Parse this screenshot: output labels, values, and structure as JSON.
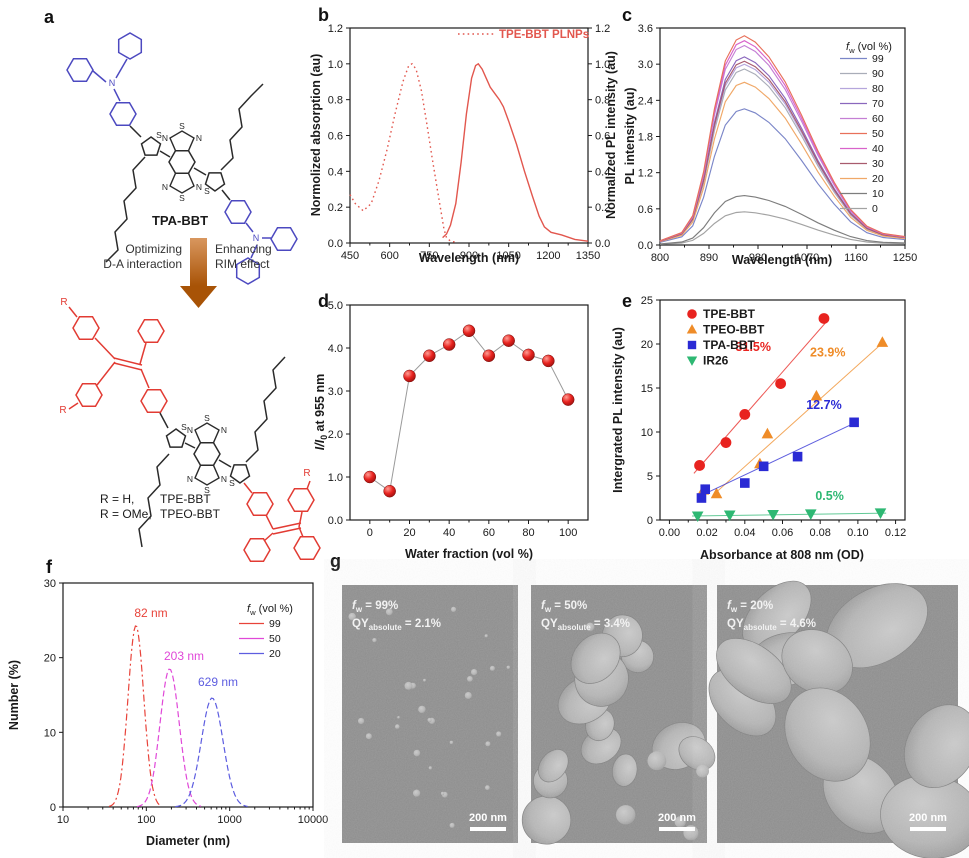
{
  "panel_a": {
    "label": "a",
    "molecule_top_name": "TPA-BBT",
    "arrow_left_lines": [
      "Optimizing",
      "D-A interaction"
    ],
    "arrow_right_lines": [
      "Enhancing",
      "RIM effect"
    ],
    "r_definitions": [
      {
        "r_label": "R = H,",
        "name": "TPE-BBT"
      },
      {
        "r_label": "R = OMe,",
        "name": "TPEO-BBT"
      }
    ],
    "atom_s": "S",
    "atom_n": "N",
    "r_symbol": "R",
    "colors": {
      "tpa_donor": "#4c49c0",
      "tpe_donor": "#e23b33",
      "core": "#2b2b2b"
    }
  },
  "chart_data": [
    {
      "id": "b",
      "type": "line",
      "panel_label": "b",
      "xlabel": "Wavelength (nm)",
      "ylabel_left": "Normolized absorption (au)",
      "ylabel_right": "Normalized PL intensity (au)",
      "xlim": [
        450,
        1350
      ],
      "ylim": [
        0,
        1.2
      ],
      "xticks": [
        450,
        600,
        750,
        900,
        1050,
        1200,
        1350
      ],
      "yticks": [
        "0.0",
        "0.2",
        "0.4",
        "0.6",
        "0.8",
        "1.0",
        "1.2"
      ],
      "legend": {
        "label": "TPE-BBT PLNPs",
        "color": "#e2574e"
      },
      "series": [
        {
          "name": "absorption",
          "style": "dotted",
          "color": "#e2574e",
          "x": [
            450,
            470,
            500,
            530,
            560,
            590,
            620,
            650,
            672,
            685,
            700,
            720,
            740,
            760,
            780,
            795,
            805,
            815,
            830,
            850
          ],
          "y": [
            0.27,
            0.22,
            0.18,
            0.22,
            0.35,
            0.52,
            0.72,
            0.9,
            0.99,
            1.0,
            0.97,
            0.85,
            0.67,
            0.48,
            0.3,
            0.17,
            0.08,
            0.03,
            0.01,
            0.005
          ]
        },
        {
          "name": "PL",
          "style": "solid",
          "color": "#e2574e",
          "x": [
            800,
            815,
            830,
            850,
            870,
            890,
            910,
            925,
            935,
            950,
            965,
            980,
            1000,
            1015,
            1030,
            1050,
            1080,
            1110,
            1140,
            1165,
            1185,
            1210,
            1250,
            1300,
            1350
          ],
          "y": [
            0.03,
            0.05,
            0.1,
            0.22,
            0.45,
            0.72,
            0.92,
            0.99,
            1.0,
            0.97,
            0.92,
            0.87,
            0.83,
            0.8,
            0.76,
            0.68,
            0.55,
            0.4,
            0.26,
            0.15,
            0.09,
            0.06,
            0.045,
            0.02,
            0.01
          ]
        }
      ]
    },
    {
      "id": "c",
      "type": "line",
      "panel_label": "c",
      "xlabel": "Wavelength (nm)",
      "ylabel": "PL intensity (au)",
      "xlim": [
        800,
        1250
      ],
      "ylim": [
        0,
        3.6
      ],
      "xticks": [
        800,
        890,
        980,
        1070,
        1160,
        1250
      ],
      "yticks": [
        "0.0",
        "0.6",
        "1.2",
        "1.8",
        "2.4",
        "3.0",
        "3.6"
      ],
      "legend_title": {
        "italic": "f",
        "sub": "w",
        "rest": " (vol %)"
      },
      "shape_x": [
        800,
        840,
        860,
        880,
        900,
        920,
        940,
        955,
        975,
        1000,
        1030,
        1060,
        1090,
        1120,
        1150,
        1180,
        1210,
        1250
      ],
      "shape_y": [
        0.02,
        0.06,
        0.14,
        0.35,
        0.65,
        0.88,
        0.98,
        1.0,
        0.97,
        0.9,
        0.78,
        0.62,
        0.45,
        0.3,
        0.17,
        0.09,
        0.055,
        0.04
      ],
      "series": [
        {
          "fw": "99",
          "peak": 2.26,
          "color": "#7b86c8"
        },
        {
          "fw": "90",
          "peak": 2.92,
          "color": "#a9adb8"
        },
        {
          "fw": "80",
          "peak": 3.0,
          "color": "#b5a6dc"
        },
        {
          "fw": "70",
          "peak": 3.12,
          "color": "#8a67bd"
        },
        {
          "fw": "60",
          "peak": 3.31,
          "color": "#c47fd4"
        },
        {
          "fw": "50",
          "peak": 3.47,
          "color": "#e8705a"
        },
        {
          "fw": "40",
          "peak": 3.39,
          "color": "#d863cb"
        },
        {
          "fw": "30",
          "peak": 3.05,
          "color": "#a85b6e"
        },
        {
          "fw": "20",
          "peak": 2.7,
          "color": "#f0a868"
        },
        {
          "fw": "10",
          "peak": 0.82,
          "color": "#7d7d7d"
        },
        {
          "fw": "0",
          "peak": 0.55,
          "color": "#a3a3a3"
        }
      ]
    },
    {
      "id": "d",
      "type": "scatter",
      "panel_label": "d",
      "xlabel": "Water fraction (vol %)",
      "ylabel_parts": {
        "italic": "I/I",
        "sub": "0",
        "rest": " at 955 nm"
      },
      "xlim": [
        -10,
        110
      ],
      "ylim": [
        0,
        5
      ],
      "xticks": [
        0,
        20,
        40,
        60,
        80,
        100
      ],
      "yticks": [
        "0.0",
        "1.0",
        "2.0",
        "3.0",
        "4.0",
        "5.0"
      ],
      "marker_color": "#e8231f",
      "points": [
        [
          0,
          1.0
        ],
        [
          10,
          0.67
        ],
        [
          20,
          3.35
        ],
        [
          30,
          3.82
        ],
        [
          40,
          4.08
        ],
        [
          50,
          4.4
        ],
        [
          60,
          3.82
        ],
        [
          70,
          4.17
        ],
        [
          80,
          3.84
        ],
        [
          90,
          3.7
        ],
        [
          100,
          2.8
        ]
      ]
    },
    {
      "id": "e",
      "type": "scatter",
      "panel_label": "e",
      "xlabel": "Absorbance at 808 nm (OD)",
      "ylabel": "Intergrated PL intensity (au)",
      "xlim": [
        -0.005,
        0.125
      ],
      "ylim": [
        0,
        25
      ],
      "xticks": [
        "0.00",
        "0.02",
        "0.04",
        "0.06",
        "0.08",
        "0.10",
        "0.12"
      ],
      "yticks": [
        0,
        5,
        10,
        15,
        20,
        25
      ],
      "series": [
        {
          "name": "TPE-BBT",
          "marker": "circle",
          "color": "#e8231f",
          "points": [
            [
              0.016,
              6.2
            ],
            [
              0.03,
              8.8
            ],
            [
              0.04,
              12.0
            ],
            [
              0.059,
              15.5
            ],
            [
              0.082,
              22.9
            ]
          ],
          "trend": [
            0.013,
            5.3,
            0.084,
            22.7
          ],
          "slope_label": "31.5%",
          "slope_pos": [
            0.0445,
            19.2
          ]
        },
        {
          "name": "TPEO-BBT",
          "marker": "triangle",
          "color": "#ef8c28",
          "points": [
            [
              0.018,
              3.4
            ],
            [
              0.025,
              3.0
            ],
            [
              0.048,
              6.4
            ],
            [
              0.052,
              9.8
            ],
            [
              0.078,
              14.1
            ],
            [
              0.113,
              20.2
            ]
          ],
          "trend": [
            0.023,
            2.8,
            0.114,
            20.3
          ],
          "slope_label": "23.9%",
          "slope_pos": [
            0.084,
            18.6
          ]
        },
        {
          "name": "TPA-BBT",
          "marker": "square",
          "color": "#2a2ad4",
          "points": [
            [
              0.017,
              2.5
            ],
            [
              0.019,
              3.5
            ],
            [
              0.04,
              4.2
            ],
            [
              0.05,
              6.1
            ],
            [
              0.068,
              7.2
            ],
            [
              0.098,
              11.1
            ]
          ],
          "trend": [
            0.02,
            3.1,
            0.1,
            11.2
          ],
          "slope_label": "12.7%",
          "slope_pos": [
            0.082,
            12.6
          ]
        },
        {
          "name": "IR26",
          "marker": "triangle-down",
          "color": "#2eb873",
          "points": [
            [
              0.015,
              0.45
            ],
            [
              0.032,
              0.55
            ],
            [
              0.055,
              0.62
            ],
            [
              0.075,
              0.68
            ],
            [
              0.112,
              0.8
            ]
          ],
          "trend": [
            0.012,
            0.45,
            0.115,
            0.78
          ],
          "slope_label": "0.5%",
          "slope_pos": [
            0.085,
            2.3
          ]
        }
      ]
    },
    {
      "id": "f",
      "type": "line",
      "panel_label": "f",
      "xlabel": "Diameter (nm)",
      "ylabel": "Number (%)",
      "xlim_log": [
        10,
        10000
      ],
      "ylim": [
        0,
        30
      ],
      "xticks": [
        10,
        100,
        1000,
        10000
      ],
      "yticks": [
        0,
        10,
        20,
        30
      ],
      "legend_title": {
        "italic": "f",
        "sub": "w",
        "rest": " (vol %)"
      },
      "series": [
        {
          "fw": "99",
          "color": "#e8433a",
          "peak_label": "82 nm",
          "center_log": 1.875,
          "sigma_log": 0.095,
          "height": 24.3,
          "label_pos": [
            151,
            77
          ],
          "dash": "7 3 2 3"
        },
        {
          "fw": "50",
          "color": "#e048d8",
          "peak_label": "203 nm",
          "center_log": 2.28,
          "sigma_log": 0.115,
          "height": 18.5,
          "label_pos": [
            184,
            120
          ],
          "dash": "6 3"
        },
        {
          "fw": "20",
          "color": "#5d5de0",
          "peak_label": "629 nm",
          "center_log": 2.79,
          "sigma_log": 0.13,
          "height": 14.6,
          "label_pos": [
            218,
            146
          ],
          "dash": "6 3"
        }
      ]
    }
  ],
  "panel_g": {
    "label": "g",
    "images": [
      {
        "fw": {
          "italic": "f",
          "sub": "w",
          "rest": " = 99%"
        },
        "qy": {
          "main": "QY",
          "sub": "absolute",
          "rest": " = 2.1%"
        },
        "scale_label": "200 nm",
        "blob_type": "dots"
      },
      {
        "fw": {
          "italic": "f",
          "sub": "w",
          "rest": " = 50%"
        },
        "qy": {
          "main": "QY",
          "sub": "absolute",
          "rest": " = 3.4%"
        },
        "scale_label": "200 nm",
        "blob_type": "medium"
      },
      {
        "fw": {
          "italic": "f",
          "sub": "w",
          "rest": " = 20%"
        },
        "qy": {
          "main": "QY",
          "sub": "absolute",
          "rest": " = 4.6%"
        },
        "scale_label": "200 nm",
        "blob_type": "large"
      }
    ]
  }
}
